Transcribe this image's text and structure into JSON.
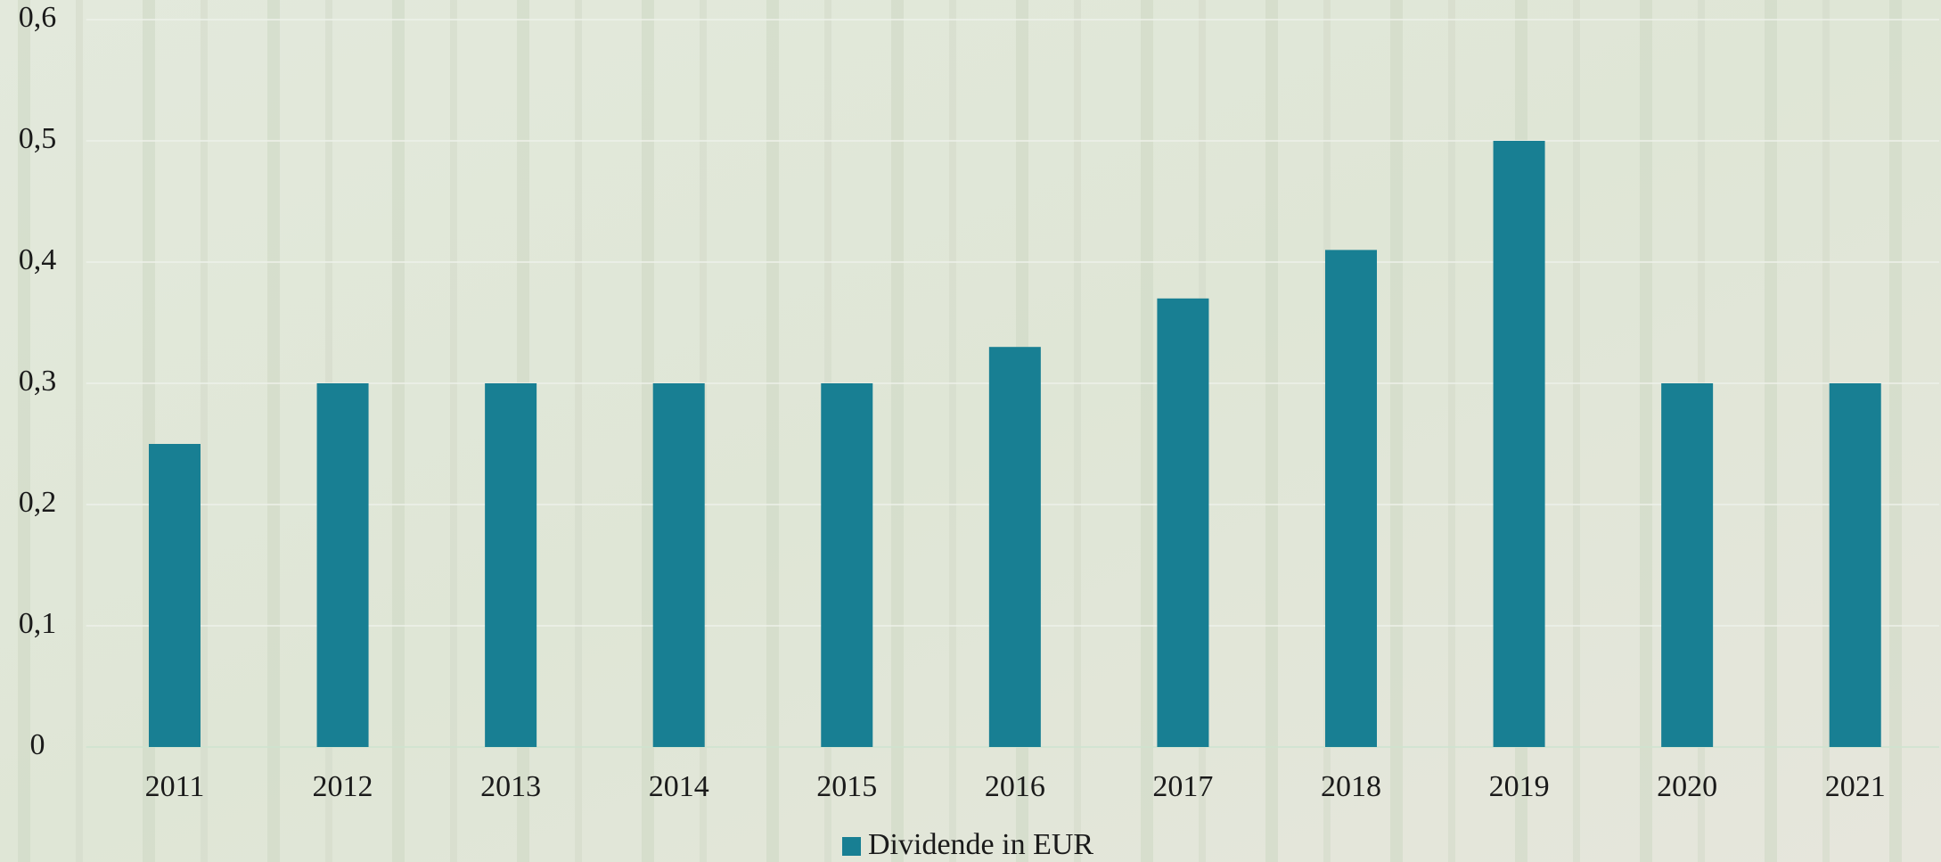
{
  "chart_data": {
    "type": "bar",
    "categories": [
      "2011",
      "2012",
      "2013",
      "2014",
      "2015",
      "2016",
      "2017",
      "2018",
      "2019",
      "2020",
      "2021"
    ],
    "series": [
      {
        "name": "Dividende in EUR",
        "color": "#187f93",
        "values": [
          0.25,
          0.3,
          0.3,
          0.3,
          0.3,
          0.33,
          0.37,
          0.41,
          0.5,
          0.3,
          0.3
        ]
      }
    ],
    "ylim": [
      0,
      0.6
    ],
    "yticks": [
      0,
      {
        "value": 0.1,
        "label": "0,1"
      },
      {
        "value": 0.2,
        "label": "0,2"
      },
      {
        "value": 0.3,
        "label": "0,3"
      },
      {
        "value": 0.4,
        "label": "0,4"
      },
      {
        "value": 0.5,
        "label": "0,5"
      },
      {
        "value": 0.6,
        "label": "0,6"
      }
    ],
    "grid": true,
    "legend": "bottom"
  }
}
